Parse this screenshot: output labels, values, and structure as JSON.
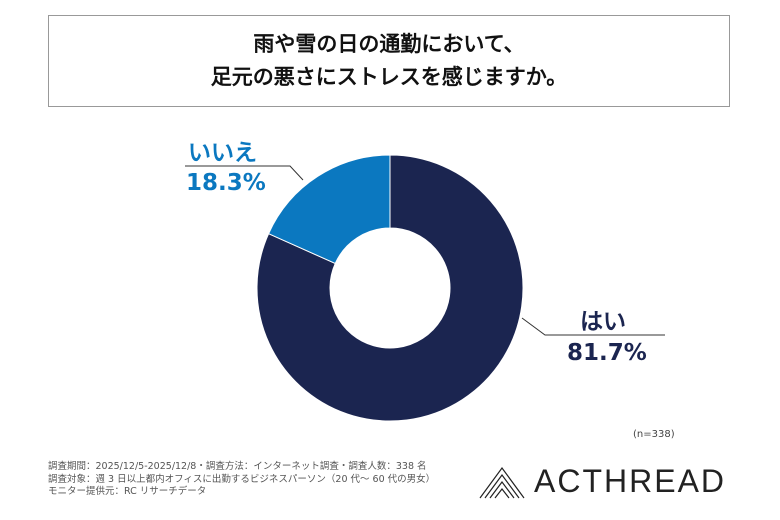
{
  "title": {
    "line1": "雨や雪の日の通勤において、",
    "line2": "足元の悪さにストレスを感じますか。"
  },
  "chart_data": {
    "type": "pie",
    "donut": true,
    "categories": [
      "はい",
      "いいえ"
    ],
    "values": [
      81.7,
      18.3
    ],
    "labels": [
      "81.7%",
      "18.3%"
    ],
    "colors": [
      "#1b2550",
      "#0b78c0"
    ],
    "note": "(n=338)"
  },
  "footer": {
    "line1": "調査期間：2025/12/5-2025/12/8・調査方法：インターネット調査・調査人数：338 名",
    "line2": "調査対象：週 3 日以上都内オフィスに出勤するビジネスパーソン（20 代～ 60 代の男女）",
    "line3": "モニター提供元：RC リサーチデータ"
  },
  "logo": {
    "text": "ACTHREAD"
  }
}
